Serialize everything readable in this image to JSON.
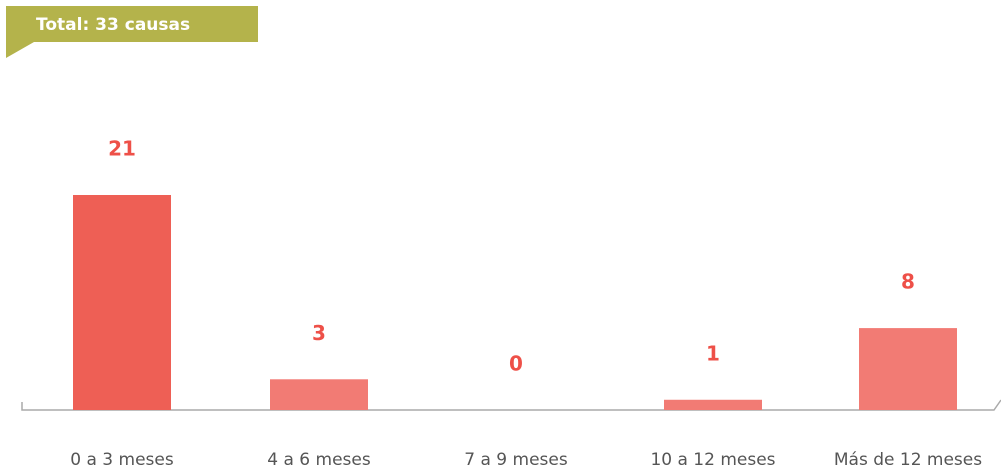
{
  "chart_data": {
    "type": "bar",
    "title": "Total: 33 causas",
    "categories": [
      "0 a 3 meses",
      "4 a 6 meses",
      "7 a 9 meses",
      "10 a 12 meses",
      "Más de 12 meses"
    ],
    "values": [
      21,
      3,
      0,
      1,
      8
    ],
    "colors": [
      "#ee5f55",
      "#f27b74",
      "#f27b74",
      "#f27b74",
      "#f27b74"
    ]
  }
}
